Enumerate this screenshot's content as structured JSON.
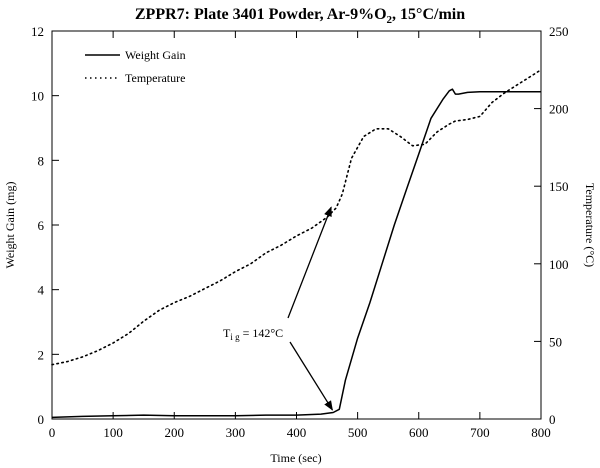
{
  "chart_data": {
    "type": "line",
    "title_prefix": "ZPPR7:  Plate 3401 Powder, Ar-9%O",
    "title_subscript": "2",
    "title_suffix": ", 15°C/min",
    "xlabel": "Time (sec)",
    "ylabel_left": "Weight Gain (mg)",
    "ylabel_right": "Temperature (°C)",
    "xlim": [
      0,
      800
    ],
    "ylim_left": [
      0,
      12
    ],
    "ylim_right": [
      0,
      250
    ],
    "x_ticks": [
      "0",
      "100",
      "200",
      "300",
      "400",
      "500",
      "600",
      "700",
      "800"
    ],
    "y_ticks_left": [
      "0",
      "2",
      "4",
      "6",
      "8",
      "10",
      "12"
    ],
    "y_ticks_right": [
      "0",
      "50",
      "100",
      "150",
      "200",
      "250"
    ],
    "grid": false,
    "legend_position": "top-left",
    "series": [
      {
        "name": "Weight Gain",
        "axis": "left",
        "style": "solid",
        "x": [
          0,
          50,
          100,
          150,
          200,
          250,
          300,
          350,
          400,
          440,
          460,
          470,
          480,
          500,
          520,
          540,
          560,
          580,
          600,
          620,
          640,
          650,
          655,
          660,
          665,
          680,
          700,
          720,
          750,
          800
        ],
        "y": [
          0.05,
          0.08,
          0.1,
          0.12,
          0.1,
          0.1,
          0.1,
          0.12,
          0.12,
          0.15,
          0.2,
          0.3,
          1.2,
          2.5,
          3.6,
          4.8,
          6.0,
          7.1,
          8.2,
          9.3,
          9.9,
          10.15,
          10.2,
          10.05,
          10.05,
          10.1,
          10.12,
          10.12,
          10.12,
          10.12
        ]
      },
      {
        "name": "Temperature",
        "axis": "right",
        "style": "dotted",
        "x": [
          0,
          25,
          50,
          75,
          100,
          125,
          150,
          175,
          200,
          225,
          250,
          275,
          300,
          325,
          350,
          375,
          400,
          425,
          450,
          465,
          475,
          490,
          510,
          530,
          550,
          570,
          590,
          610,
          630,
          650,
          660,
          680,
          700,
          720,
          740,
          760,
          780,
          800
        ],
        "y": [
          35,
          37,
          40,
          44,
          49,
          55,
          63,
          70,
          75,
          79,
          84,
          89,
          95,
          100,
          107,
          112,
          118,
          123,
          130,
          136,
          145,
          168,
          182,
          187,
          187,
          182,
          176,
          177,
          185,
          190,
          192,
          193,
          195,
          204,
          210,
          215,
          220,
          225
        ]
      }
    ],
    "annotation": {
      "label_main": "T",
      "label_sub": "i g",
      "label_rest": " = 142°C",
      "arrow_targets": [
        {
          "x": 460,
          "y_left": 6.55
        },
        {
          "x": 462,
          "y_left": 0.28
        }
      ]
    }
  }
}
